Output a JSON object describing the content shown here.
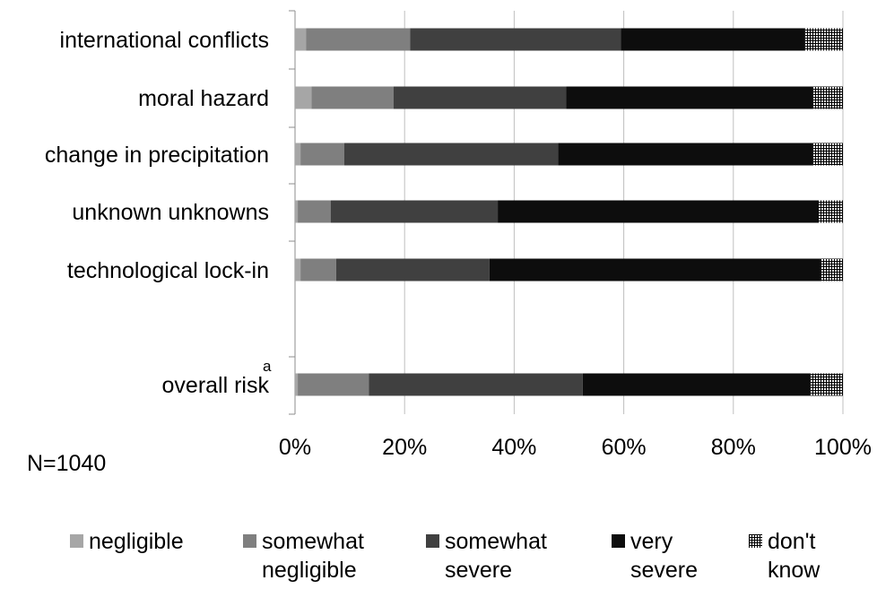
{
  "chart_data": {
    "type": "bar",
    "orientation": "horizontal",
    "stacked": true,
    "percent": true,
    "categories": [
      {
        "label": "international conflicts",
        "sup": ""
      },
      {
        "label": "moral hazard",
        "sup": ""
      },
      {
        "label": "change in precipitation",
        "sup": ""
      },
      {
        "label": "unknown unknowns",
        "sup": ""
      },
      {
        "label": "technological lock-in",
        "sup": ""
      },
      {
        "label": "overall risk",
        "sup": "a"
      }
    ],
    "series": [
      {
        "name": "negligible",
        "name_lines": [
          "negligible"
        ],
        "color": "#a6a6a6",
        "values": [
          2,
          3,
          1,
          0.5,
          1,
          0.5
        ]
      },
      {
        "name": "somewhat negligible",
        "name_lines": [
          "somewhat",
          "negligible"
        ],
        "color": "#7f7f7f",
        "values": [
          19,
          15,
          8,
          6,
          6.5,
          13
        ]
      },
      {
        "name": "somewhat severe",
        "name_lines": [
          "somewhat",
          "severe"
        ],
        "color": "#404040",
        "values": [
          38.5,
          31.5,
          39,
          30.5,
          28,
          39
        ]
      },
      {
        "name": "very severe",
        "name_lines": [
          "very",
          "severe"
        ],
        "color": "#0d0d0d",
        "values": [
          33.5,
          45,
          46.5,
          58.5,
          60.5,
          41.5
        ]
      },
      {
        "name": "don't know",
        "name_lines": [
          "don't",
          "know"
        ],
        "color": "#000000",
        "pattern": "grid",
        "values": [
          7,
          5.5,
          5.5,
          4.5,
          4,
          6
        ]
      }
    ],
    "x_ticks": [
      "0%",
      "20%",
      "40%",
      "60%",
      "80%",
      "100%"
    ],
    "xlim": [
      0,
      100
    ],
    "grid": true,
    "legend_position": "bottom",
    "annotation": "N=1040"
  }
}
